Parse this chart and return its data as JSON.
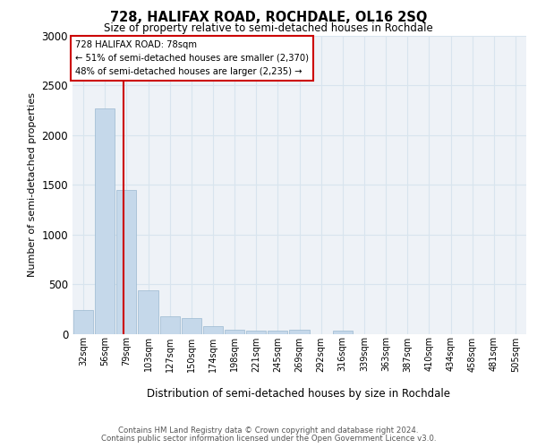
{
  "title_top": "728, HALIFAX ROAD, ROCHDALE, OL16 2SQ",
  "title_sub": "Size of property relative to semi-detached houses in Rochdale",
  "xlabel": "Distribution of semi-detached houses by size in Rochdale",
  "ylabel": "Number of semi-detached properties",
  "categories": [
    "32sqm",
    "56sqm",
    "79sqm",
    "103sqm",
    "127sqm",
    "150sqm",
    "174sqm",
    "198sqm",
    "221sqm",
    "245sqm",
    "269sqm",
    "292sqm",
    "316sqm",
    "339sqm",
    "363sqm",
    "387sqm",
    "410sqm",
    "434sqm",
    "458sqm",
    "481sqm",
    "505sqm"
  ],
  "values": [
    240,
    2270,
    1450,
    440,
    175,
    155,
    75,
    45,
    35,
    30,
    40,
    0,
    30,
    0,
    0,
    0,
    0,
    0,
    0,
    0,
    0
  ],
  "bar_color": "#c5d8ea",
  "bar_edge_color": "#9ab8d0",
  "property_line_x": 1.88,
  "annotation_line1": "728 HALIFAX ROAD: 78sqm",
  "annotation_line2": "← 51% of semi-detached houses are smaller (2,370)",
  "annotation_line3": "48% of semi-detached houses are larger (2,235) →",
  "annotation_box_color": "#ffffff",
  "annotation_box_edge": "#cc0000",
  "vline_color": "#cc0000",
  "grid_color": "#d8e4ee",
  "background_color": "#eef2f7",
  "ylim": [
    0,
    3000
  ],
  "footer_line1": "Contains HM Land Registry data © Crown copyright and database right 2024.",
  "footer_line2": "Contains public sector information licensed under the Open Government Licence v3.0."
}
